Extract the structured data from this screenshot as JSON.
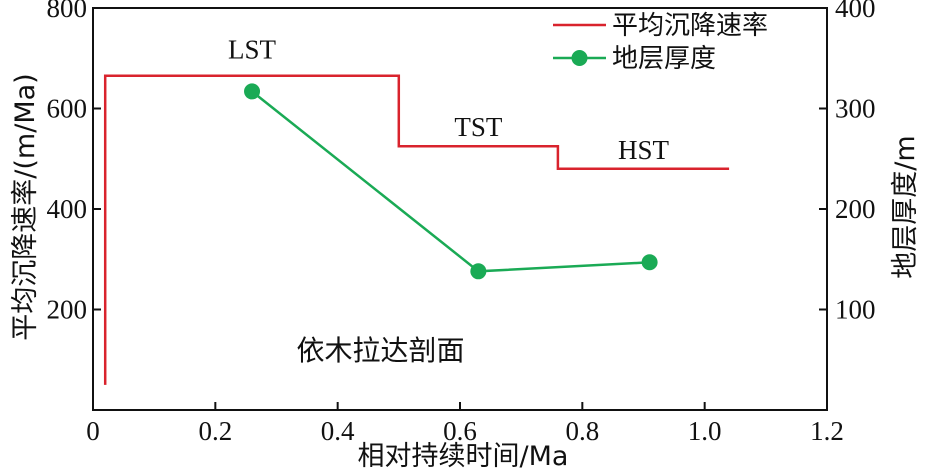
{
  "chart_data": {
    "type": "line",
    "xlabel": "相对持续时间/Ma",
    "ylabel_left": "平均沉降速率/(m/Ma)",
    "ylabel_right": "地层厚度/m",
    "xlim": [
      0,
      1.2
    ],
    "ylim_left": [
      0,
      800
    ],
    "ylim_right": [
      0,
      400
    ],
    "x_ticks": [
      "0",
      "0.2",
      "0.4",
      "0.6",
      "0.8",
      "1.0",
      "1.2"
    ],
    "y_left_ticks": [
      "200",
      "400",
      "600",
      "800"
    ],
    "y_right_ticks": [
      "100",
      "200",
      "300",
      "400"
    ],
    "grid": false,
    "legend_position": "top-right",
    "series": [
      {
        "name": "平均沉降速率",
        "axis": "left",
        "color": "#d9232d",
        "style": "step",
        "x": [
          0.02,
          0.02,
          0.5,
          0.5,
          0.76,
          0.76,
          1.04
        ],
        "y": [
          50,
          665,
          665,
          525,
          525,
          480,
          480
        ]
      },
      {
        "name": "地层厚度",
        "axis": "right",
        "color": "#1aaa55",
        "style": "line-marker",
        "x": [
          0.26,
          0.63,
          0.91
        ],
        "y": [
          317,
          138,
          147
        ]
      }
    ],
    "annotations": [
      {
        "text": "LST",
        "x": 0.26,
        "y": 700
      },
      {
        "text": "TST",
        "x": 0.63,
        "y": 545
      },
      {
        "text": "HST",
        "x": 0.9,
        "y": 500
      },
      {
        "text": "依木拉达剖面",
        "x": 0.47,
        "y": 100
      }
    ]
  }
}
